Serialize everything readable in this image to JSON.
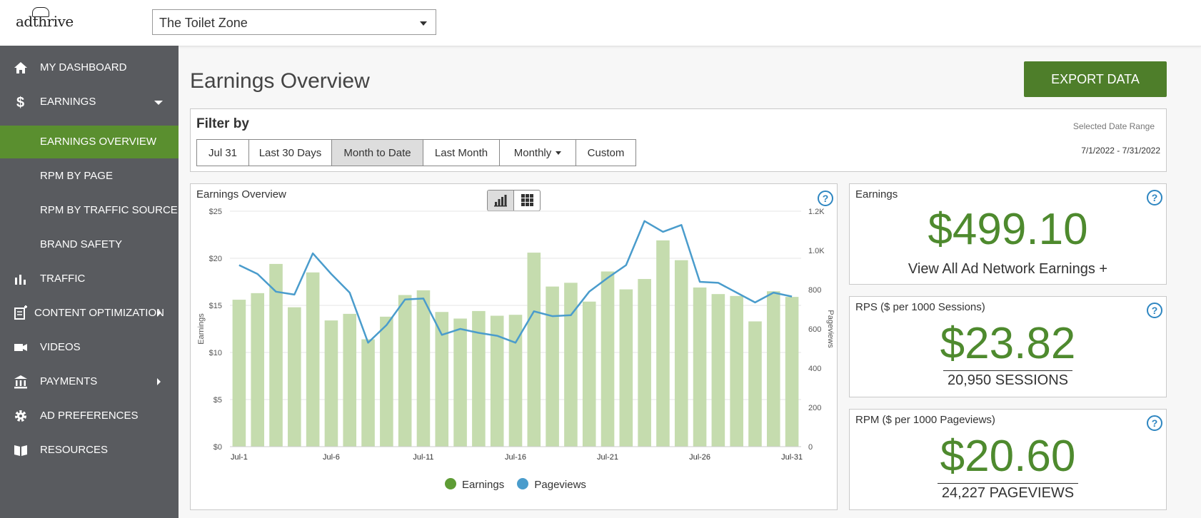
{
  "header": {
    "logo_text": "adthrive",
    "site_selector": {
      "value": "The Toilet Zone"
    }
  },
  "sidebar": {
    "items": [
      {
        "label": "MY DASHBOARD",
        "icon": "home-icon"
      },
      {
        "label": "EARNINGS",
        "icon": "dollar-icon"
      },
      {
        "label": "EARNINGS OVERVIEW",
        "active": true
      },
      {
        "label": "RPM BY PAGE"
      },
      {
        "label": "RPM BY TRAFFIC SOURCE"
      },
      {
        "label": "BRAND SAFETY"
      },
      {
        "label": "TRAFFIC",
        "icon": "bar-chart-icon"
      },
      {
        "label": "CONTENT OPTIMIZATION",
        "icon": "document-edit-icon"
      },
      {
        "label": "VIDEOS",
        "icon": "video-camera-icon"
      },
      {
        "label": "PAYMENTS",
        "icon": "bank-icon"
      },
      {
        "label": "AD PREFERENCES",
        "icon": "gear-icon"
      },
      {
        "label": "RESOURCES",
        "icon": "book-icon"
      }
    ]
  },
  "main": {
    "title": "Earnings Overview",
    "export_label": "EXPORT DATA"
  },
  "filter": {
    "title": "Filter by",
    "buttons": [
      "Jul 31",
      "Last 30 Days",
      "Month to Date",
      "Last Month",
      "Monthly",
      "Custom"
    ],
    "selected": "Month to Date",
    "date_range_label": "Selected Date Range",
    "date_range_value": "7/1/2022 - 7/31/2022"
  },
  "chart_panel": {
    "title": "Earnings Overview"
  },
  "chart_data": {
    "type": "bar",
    "title": "Earnings Overview",
    "categories": [
      "Jul-1",
      "Jul-2",
      "Jul-3",
      "Jul-4",
      "Jul-5",
      "Jul-6",
      "Jul-7",
      "Jul-8",
      "Jul-9",
      "Jul-10",
      "Jul-11",
      "Jul-12",
      "Jul-13",
      "Jul-14",
      "Jul-15",
      "Jul-16",
      "Jul-17",
      "Jul-18",
      "Jul-19",
      "Jul-20",
      "Jul-21",
      "Jul-22",
      "Jul-23",
      "Jul-24",
      "Jul-25",
      "Jul-26",
      "Jul-27",
      "Jul-28",
      "Jul-29",
      "Jul-30",
      "Jul-31"
    ],
    "x_tick_labels": [
      "Jul-1",
      "Jul-6",
      "Jul-11",
      "Jul-16",
      "Jul-21",
      "Jul-26",
      "Jul-31"
    ],
    "series": [
      {
        "name": "Earnings",
        "type": "bar",
        "axis": "left",
        "color": "#c5dcae",
        "values": [
          15.6,
          16.3,
          19.4,
          14.8,
          18.5,
          13.4,
          14.1,
          11.4,
          13.8,
          16.1,
          16.6,
          14.3,
          13.6,
          14.4,
          13.9,
          14.0,
          20.6,
          17.0,
          17.4,
          15.4,
          18.6,
          16.7,
          17.8,
          21.9,
          19.8,
          16.9,
          16.2,
          16.0,
          13.3,
          16.5,
          15.9
        ]
      },
      {
        "name": "Pageviews",
        "type": "line",
        "axis": "right",
        "color": "#4a9ccc",
        "values": [
          925,
          880,
          790,
          775,
          985,
          880,
          785,
          530,
          620,
          750,
          755,
          570,
          600,
          580,
          565,
          530,
          690,
          665,
          670,
          790,
          860,
          925,
          1150,
          1095,
          1130,
          840,
          835,
          785,
          735,
          785,
          765
        ]
      }
    ],
    "yleft": {
      "label": "Earnings",
      "ylim": [
        0,
        25
      ],
      "ticks": [
        "$0",
        "$5",
        "$10",
        "$15",
        "$20",
        "$25"
      ]
    },
    "yright": {
      "label": "Pageviews",
      "ylim": [
        0,
        1200
      ],
      "ticks": [
        "0",
        "200",
        "400",
        "600",
        "800",
        "1.0K",
        "1.2K"
      ]
    },
    "grid": true,
    "legend": "bottom-center"
  },
  "cards": {
    "earnings": {
      "label": "Earnings",
      "value": "$499.10",
      "link": "View All Ad Network Earnings +"
    },
    "rps": {
      "label": "RPS ($ per 1000 Sessions)",
      "value": "$23.82",
      "sub": "20,950 SESSIONS"
    },
    "rpm": {
      "label": "RPM ($ per 1000 Pageviews)",
      "value": "$20.60",
      "sub": "24,227 PAGEVIEWS"
    }
  },
  "colors": {
    "accent": "#4e7e2a",
    "sidebar": "#595b5f",
    "active_nav": "#5a8f2f",
    "help": "#2e86c1"
  }
}
